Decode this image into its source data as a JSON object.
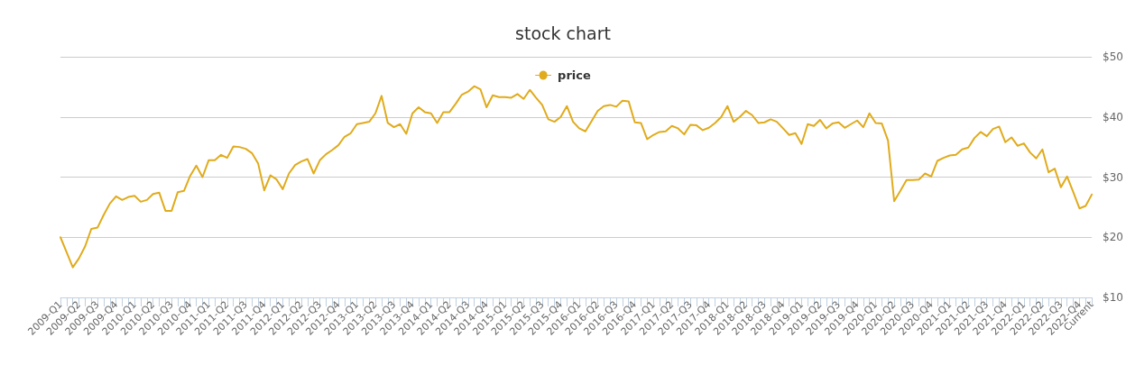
{
  "chart_data": {
    "type": "line",
    "title": "stock chart",
    "categories": [
      "2009-Q1",
      null,
      null,
      "2009-Q2",
      null,
      null,
      "2009-Q3",
      null,
      null,
      "2009-Q4",
      null,
      null,
      "2010-Q1",
      null,
      null,
      "2010-Q2",
      null,
      null,
      "2010-Q3",
      null,
      null,
      "2010-Q4",
      null,
      null,
      "2011-Q1",
      null,
      null,
      "2011-Q2",
      null,
      null,
      "2011-Q3",
      null,
      null,
      "2011-Q4",
      null,
      null,
      "2012-Q1",
      null,
      null,
      "2012-Q2",
      null,
      null,
      "2012-Q3",
      null,
      null,
      "2012-Q4",
      null,
      null,
      "2013-Q1",
      null,
      null,
      "2013-Q2",
      null,
      null,
      "2013-Q3",
      null,
      null,
      "2013-Q4",
      null,
      null,
      "2014-Q1",
      null,
      null,
      "2014-Q2",
      null,
      null,
      "2014-Q3",
      null,
      null,
      "2014-Q4",
      null,
      null,
      "2015-Q1",
      null,
      null,
      "2015-Q2",
      null,
      null,
      "2015-Q3",
      null,
      null,
      "2015-Q4",
      null,
      null,
      "2016-Q1",
      null,
      null,
      "2016-Q2",
      null,
      null,
      "2016-Q3",
      null,
      null,
      "2016-Q4",
      null,
      null,
      "2017-Q1",
      null,
      null,
      "2017-Q2",
      null,
      null,
      "2017-Q3",
      null,
      null,
      "2017-Q4",
      null,
      null,
      "2018-Q1",
      null,
      null,
      "2018-Q2",
      null,
      null,
      "2018-Q3",
      null,
      null,
      "2018-Q4",
      null,
      null,
      "2019-Q1",
      null,
      null,
      "2019-Q2",
      null,
      null,
      "2019-Q3",
      null,
      null,
      "2019-Q4",
      null,
      null,
      "2020-Q1",
      null,
      null,
      "2020-Q2",
      null,
      null,
      "2020-Q3",
      null,
      null,
      "2020-Q4",
      null,
      null,
      "2021-Q1",
      null,
      null,
      "2021-Q2",
      null,
      null,
      "2021-Q3",
      null,
      null,
      "2021-Q4",
      null,
      null,
      "2022-Q1",
      null,
      null,
      "2022-Q2",
      null,
      null,
      "2022-Q3",
      null,
      null,
      "2022-Q4",
      null,
      "Current"
    ],
    "series": [
      {
        "name": "price",
        "color": "#e0ab1c",
        "values": [
          20.0,
          17.5,
          15.0,
          16.5,
          18.5,
          21.4,
          21.6,
          23.7,
          25.6,
          26.8,
          26.2,
          26.7,
          26.9,
          25.9,
          26.2,
          27.2,
          27.4,
          24.4,
          24.4,
          27.5,
          27.7,
          30.2,
          31.9,
          30.0,
          32.8,
          32.8,
          33.7,
          33.2,
          35.1,
          35.0,
          34.7,
          34.0,
          32.3,
          27.8,
          30.3,
          29.6,
          28.0,
          30.6,
          32.0,
          32.6,
          33.0,
          30.6,
          32.8,
          33.8,
          34.5,
          35.3,
          36.7,
          37.3,
          38.8,
          39.0,
          39.2,
          40.6,
          43.5,
          39.0,
          38.3,
          38.8,
          37.2,
          40.6,
          41.6,
          40.8,
          40.6,
          39.0,
          40.8,
          40.8,
          42.2,
          43.7,
          44.2,
          45.1,
          44.6,
          41.6,
          43.6,
          43.3,
          43.3,
          43.2,
          43.8,
          43.0,
          44.5,
          43.2,
          42.0,
          39.6,
          39.2,
          40.0,
          41.8,
          39.2,
          38.1,
          37.6,
          39.3,
          41.0,
          41.8,
          42.0,
          41.7,
          42.7,
          42.6,
          39.1,
          39.0,
          36.3,
          37.0,
          37.5,
          37.6,
          38.5,
          38.1,
          37.1,
          38.7,
          38.6,
          37.8,
          38.2,
          39.0,
          40.0,
          41.8,
          39.2,
          40.0,
          41.0,
          40.3,
          39.0,
          39.1,
          39.6,
          39.2,
          38.1,
          37.0,
          37.3,
          35.5,
          38.8,
          38.5,
          39.5,
          38.1,
          38.9,
          39.1,
          38.2,
          38.8,
          39.4,
          38.3,
          40.6,
          39.0,
          38.9,
          36.1,
          26.0,
          27.7,
          29.5,
          29.5,
          29.6,
          30.6,
          30.1,
          32.7,
          33.2,
          33.6,
          33.7,
          34.6,
          34.9,
          36.5,
          37.5,
          36.8,
          38.0,
          38.4,
          35.8,
          36.6,
          35.2,
          35.6,
          34.1,
          33.1,
          34.6,
          30.8,
          31.4,
          28.3,
          30.1,
          27.5,
          24.8,
          25.2,
          27.1
        ]
      }
    ],
    "ylim": [
      10,
      50
    ],
    "yticks": [
      {
        "value": 10,
        "label": "$10"
      },
      {
        "value": 20,
        "label": "$20"
      },
      {
        "value": 30,
        "label": "$30"
      },
      {
        "value": 40,
        "label": "$40"
      },
      {
        "value": 50,
        "label": "$50"
      }
    ],
    "grid": "y",
    "legend": "top",
    "marker": "none",
    "line_style": "solid"
  }
}
